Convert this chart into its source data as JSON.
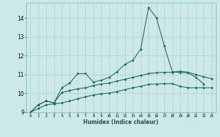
{
  "xlabel": "Humidex (Indice chaleur)",
  "background_color": "#cce8e8",
  "grid_color": "#aacccc",
  "line_color": "#1a6b5a",
  "x_values": [
    0,
    1,
    2,
    3,
    4,
    5,
    6,
    7,
    8,
    9,
    10,
    11,
    12,
    13,
    14,
    15,
    16,
    17,
    18,
    19,
    20,
    21,
    22,
    23
  ],
  "line1": [
    9.0,
    9.4,
    9.6,
    9.5,
    10.3,
    10.55,
    11.05,
    11.05,
    10.6,
    10.7,
    10.85,
    11.15,
    11.55,
    11.75,
    12.35,
    14.55,
    14.0,
    12.5,
    11.15,
    11.1,
    11.1,
    10.85,
    10.5,
    null
  ],
  "line_mid": [
    9.0,
    9.4,
    9.6,
    9.5,
    10.05,
    10.15,
    10.25,
    10.3,
    10.42,
    10.5,
    10.55,
    10.65,
    10.75,
    10.85,
    10.95,
    11.05,
    11.1,
    11.12,
    11.12,
    11.18,
    11.12,
    11.0,
    10.88,
    10.78
  ],
  "line_bot": [
    9.0,
    9.2,
    9.4,
    9.45,
    9.5,
    9.6,
    9.72,
    9.82,
    9.92,
    9.98,
    10.02,
    10.1,
    10.2,
    10.3,
    10.38,
    10.48,
    10.5,
    10.52,
    10.52,
    10.38,
    10.3,
    10.3,
    10.3,
    10.3
  ],
  "ylim": [
    9.0,
    14.8
  ],
  "xlim": [
    -0.5,
    23.5
  ],
  "yticks": [
    9,
    10,
    11,
    12,
    13,
    14
  ],
  "xticks": [
    0,
    1,
    2,
    3,
    4,
    5,
    6,
    7,
    8,
    9,
    10,
    11,
    12,
    13,
    14,
    15,
    16,
    17,
    18,
    19,
    20,
    21,
    22,
    23
  ]
}
